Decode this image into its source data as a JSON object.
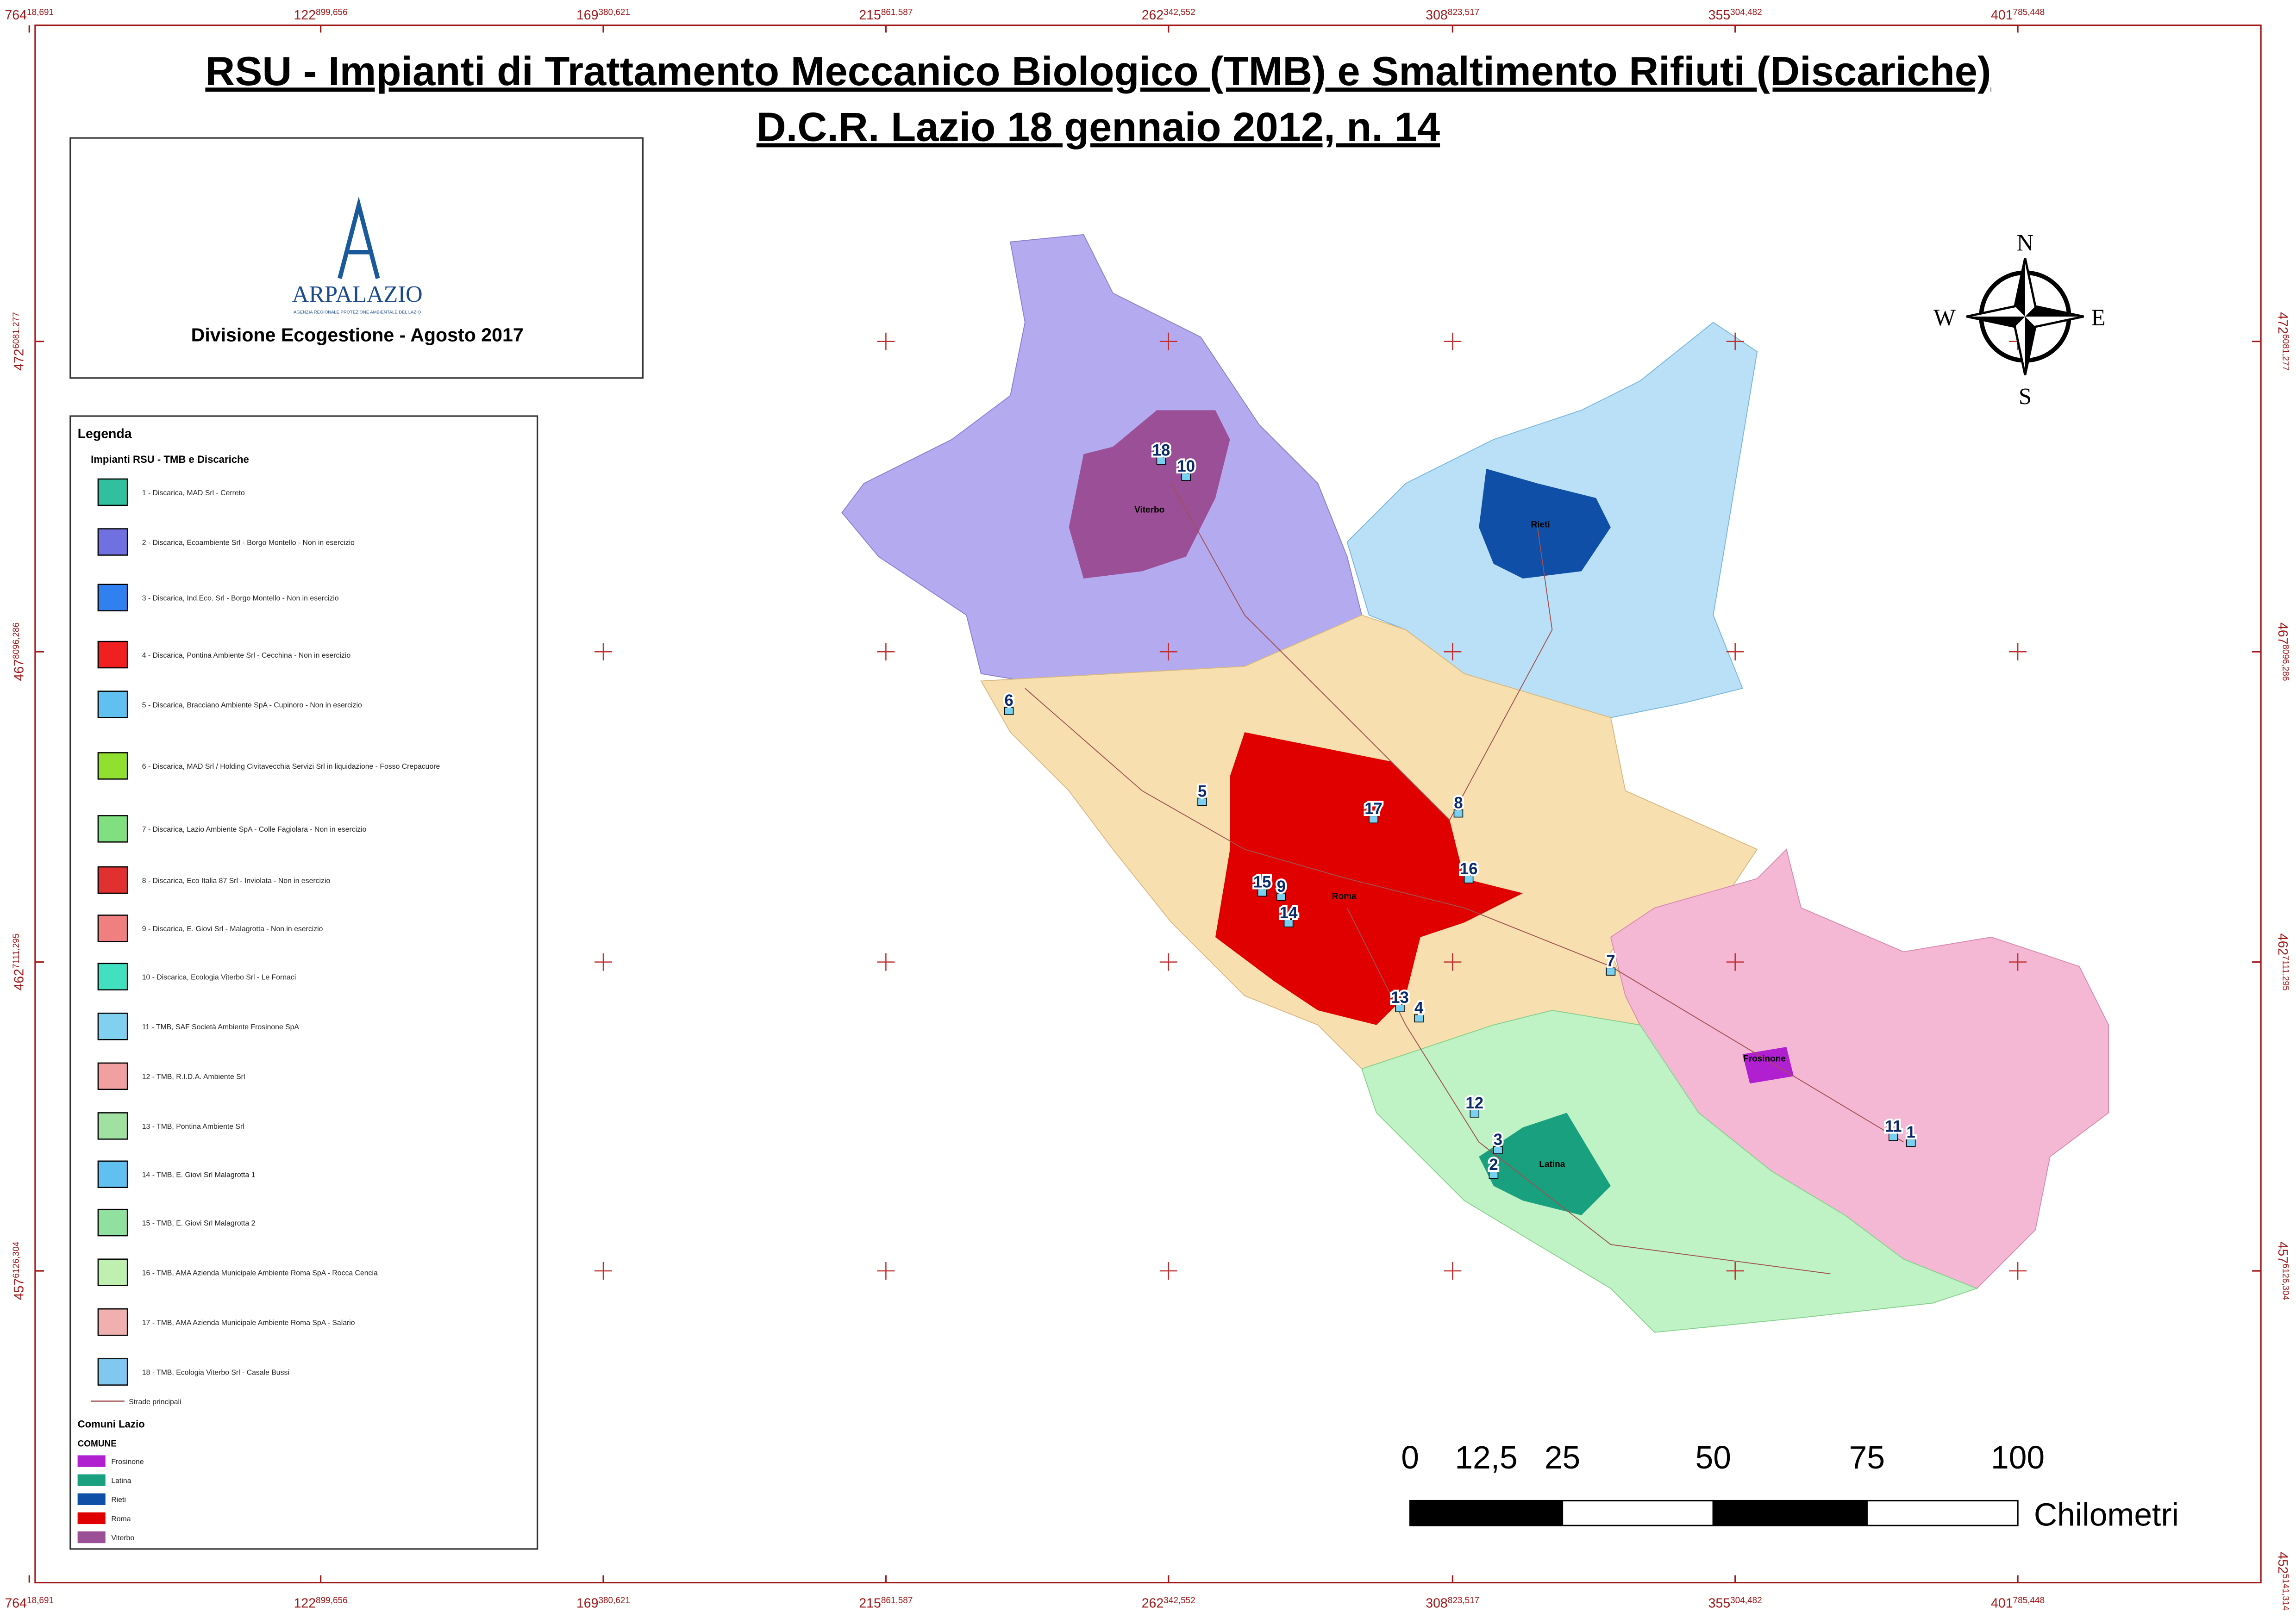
{
  "header": {
    "title_line1": "RSU - Impianti di Trattamento Meccanico Biologico (TMB) e Smaltimento Rifiuti  (Discariche)",
    "title_line2": "D.C.R. Lazio 18 gennaio 2012, n. 14"
  },
  "logo": {
    "name": "ARPALAZIO",
    "tagline": "AGENZIA REGIONALE PROTEZIONE AMBIENTALE DEL LAZIO",
    "division": "Divisione Ecogestione - Agosto 2017"
  },
  "legend": {
    "title": "Legenda",
    "section": "Impianti RSU - TMB e Discariche",
    "items": [
      "1 - Discarica, MAD Srl - Cerreto",
      "2 - Discarica, Ecoambiente Srl - Borgo Montello - Non in esercizio",
      "3 - Discarica, Ind.Eco. Srl - Borgo Montello - Non in esercizio",
      "4 - Discarica, Pontina Ambiente Srl - Cecchina - Non in esercizio",
      "5 - Discarica, Bracciano Ambiente SpA - Cupinoro - Non in esercizio",
      "6 - Discarica, MAD Srl / Holding Civitavecchia Servizi Srl in liquidazione - Fosso Crepacuore",
      "7 - Discarica, Lazio Ambiente SpA - Colle Fagiolara - Non in esercizio",
      "8 - Discarica, Eco Italia 87 Srl - Inviolata - Non in esercizio",
      "9 - Discarica, E. Giovi Srl - Malagrotta - Non in esercizio",
      "10 - Discarica, Ecologia Viterbo Srl - Le Fornaci",
      "11 - TMB, SAF Società Ambiente Frosinone SpA",
      "12 - TMB, R.I.D.A. Ambiente Srl",
      "13 - TMB, Pontina Ambiente Srl",
      "14 - TMB, E. Giovi Srl Malagrotta 1",
      "15 - TMB, E. Giovi Srl Malagrotta 2",
      "16 - TMB, AMA Azienda Municipale Ambiente Roma SpA - Rocca Cencia",
      "17 - TMB, AMA Azienda Municipale Ambiente Roma SpA - Salario",
      "18 - TMB, Ecologia Viterbo Srl - Casale Bussi"
    ],
    "roads": "Strade principali",
    "comuni_title": "Comuni Lazio",
    "comune_field": "COMUNE",
    "comuni": [
      "Frosinone",
      "Latina",
      "Rieti",
      "Roma",
      "Viterbo"
    ]
  },
  "map": {
    "cities": [
      "Viterbo",
      "Rieti",
      "Roma",
      "Frosinone",
      "Latina"
    ],
    "sites": [
      "18",
      "10",
      "17",
      "8",
      "16",
      "15",
      "9",
      "14",
      "5",
      "6",
      "7",
      "13",
      "4",
      "12",
      "3",
      "2",
      "11",
      "1"
    ]
  },
  "compass": {
    "n": "N",
    "s": "S",
    "e": "E",
    "w": "W"
  },
  "scale": {
    "labels": [
      "0",
      "12,5",
      "25",
      "50",
      "75",
      "100"
    ],
    "unit": "Chilometri"
  },
  "frame": {
    "x_labels": [
      {
        "main": "764",
        "sup": "18,691"
      },
      {
        "main": "122",
        "sup": "899,656"
      },
      {
        "main": "169",
        "sup": "380,621"
      },
      {
        "main": "215",
        "sup": "861,587"
      },
      {
        "main": "262",
        "sup": "342,552"
      },
      {
        "main": "308",
        "sup": "823,517"
      },
      {
        "main": "355",
        "sup": "304,482"
      },
      {
        "main": "401",
        "sup": "785,448"
      }
    ],
    "y_labels": [
      {
        "main": "472",
        "sup": "6081,277"
      },
      {
        "main": "467",
        "sup": "8096,286"
      },
      {
        "main": "462",
        "sup": "7111,295"
      },
      {
        "main": "457",
        "sup": "6126,304"
      }
    ],
    "corner": {
      "main": "452",
      "sup": "5141,314"
    }
  }
}
